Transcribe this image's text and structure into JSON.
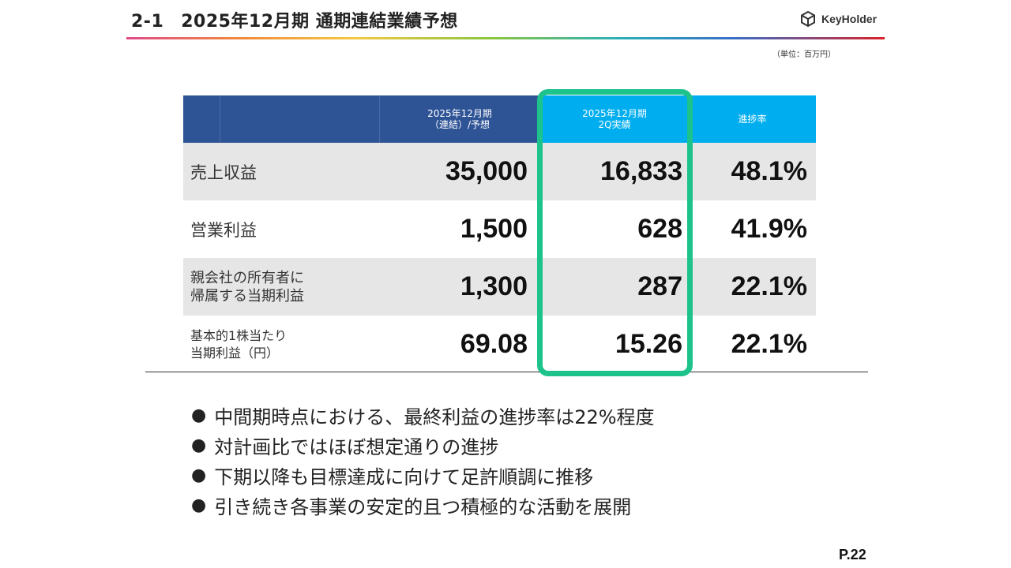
{
  "header": {
    "section_number": "2-1",
    "title": "2025年12月期 通期連結業績予想",
    "logo_text": "KeyHolder",
    "logo_icon": "cube-icon"
  },
  "unit_note": "（単位：百万円）",
  "table": {
    "columns": [
      {
        "line1": "2025年12月期",
        "line2": "（連結）/予想"
      },
      {
        "line1": "2025年12月期",
        "line2": "2Q実績"
      },
      {
        "line1": "進捗率",
        "line2": ""
      }
    ],
    "rows": [
      {
        "label_line1": "売上収益",
        "label_line2": "",
        "forecast": "35,000",
        "actual": "16,833",
        "progress": "48.1%"
      },
      {
        "label_line1": "営業利益",
        "label_line2": "",
        "forecast": "1,500",
        "actual": "628",
        "progress": "41.9%"
      },
      {
        "label_line1": "親会社の所有者に",
        "label_line2": "帰属する当期利益",
        "forecast": "1,300",
        "actual": "287",
        "progress": "22.1%"
      },
      {
        "label_line1": "基本的1株当たり",
        "label_line2": "当期利益（円）",
        "forecast": "69.08",
        "actual": "15.26",
        "progress": "22.1%"
      }
    ]
  },
  "colors": {
    "header_blue": "#2f5496",
    "header_cyan": "#00aeef",
    "highlight_green": "#1ec28b",
    "row_gray": "#e6e6e6"
  },
  "bullets": [
    "中間期時点における、最終利益の進捗率は22%程度",
    "対計画比ではほぼ想定通りの進捗",
    "下期以降も目標達成に向けて足許順調に推移",
    "引き続き各事業の安定的且つ積極的な活動を展開"
  ],
  "page_number": "P.22"
}
